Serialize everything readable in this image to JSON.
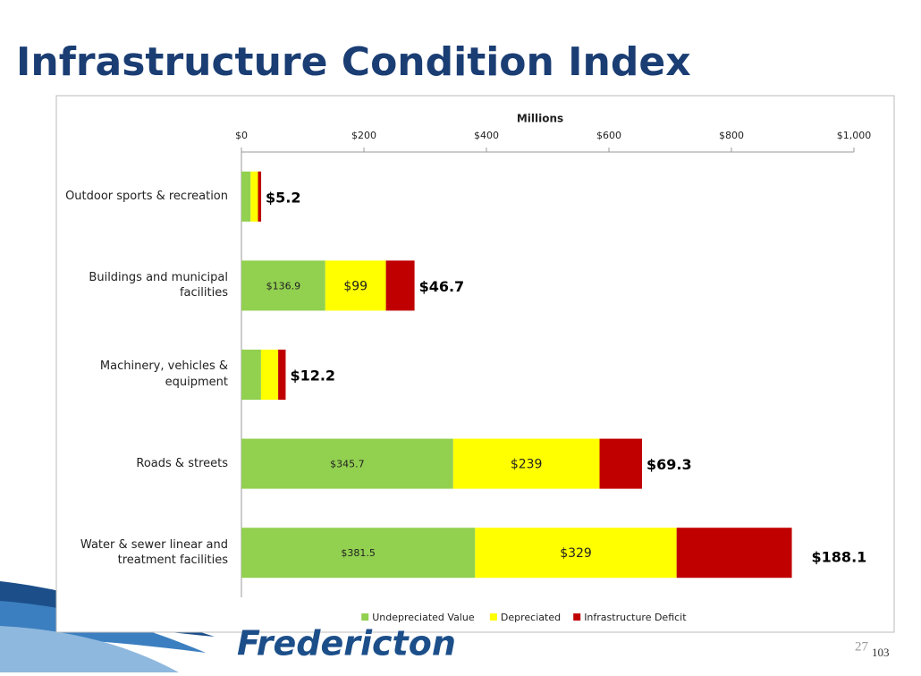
{
  "chart_data": {
    "type": "stacked-bar-horizontal",
    "title": "Infrastructure Condition Index",
    "x_label": "Millions",
    "categories": [
      "Outdoor sports & recreation",
      "Buildings and municipal facilities",
      "Machinery, vehicles & equipment",
      "Roads & streets",
      "Water & sewer linear and treatment facilities"
    ],
    "series": [
      {
        "name": "Undepreciated Value",
        "color": "#92d050",
        "values": [
          15,
          136.9,
          32,
          345.7,
          381.5
        ],
        "value_labels": [
          null,
          "$136.9",
          null,
          "$345.7",
          "$381.5"
        ]
      },
      {
        "name": "Depreciated",
        "color": "#ffff00",
        "values": [
          12,
          99,
          28,
          239,
          329
        ],
        "value_labels": [
          null,
          "$99",
          null,
          "$239",
          "$329"
        ]
      },
      {
        "name": "Infrastructure Deficit",
        "color": "#c00000",
        "values": [
          5.2,
          46.7,
          12.2,
          69.3,
          188.1
        ],
        "value_labels": [
          "$5.2",
          "$46.7",
          "$12.2",
          "$69.3",
          "$188.1"
        ]
      }
    ],
    "xlim": [
      0,
      1000
    ],
    "xticks": [
      {
        "value": 0,
        "label": "$0"
      },
      {
        "value": 200,
        "label": "$200"
      },
      {
        "value": 400,
        "label": "$400"
      },
      {
        "value": 600,
        "label": "$600"
      },
      {
        "value": 800,
        "label": "$800"
      },
      {
        "value": 1000,
        "label": "$1,000"
      }
    ],
    "grid": false,
    "legend": "bottom"
  },
  "footer": {
    "logo": "Fredericton",
    "page_number": "27",
    "page_total": "103"
  }
}
